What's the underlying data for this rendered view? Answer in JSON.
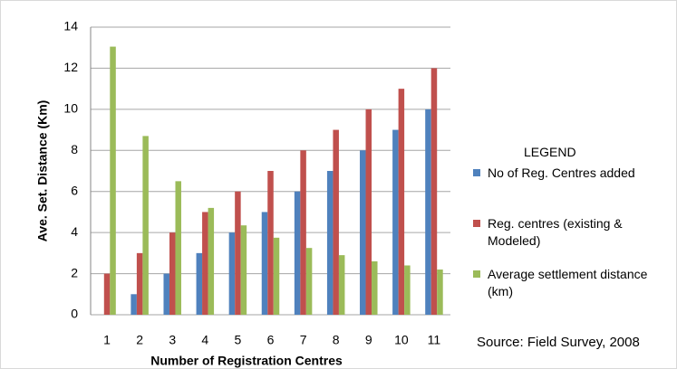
{
  "chart_data": {
    "type": "bar",
    "y_label": "Ave. Set. Distance (Km)",
    "x_label": "Number of Registration Centres",
    "legend_title": "LEGEND",
    "annotation": "Source: Field Survey, 2008",
    "categories": [
      "1",
      "2",
      "3",
      "4",
      "5",
      "6",
      "7",
      "8",
      "9",
      "10",
      "11"
    ],
    "series": [
      {
        "name": "No of Reg. Centres added",
        "color": "#4f81bd",
        "values": [
          0,
          1,
          2,
          3,
          4,
          5,
          6,
          7,
          8,
          9,
          10
        ]
      },
      {
        "name": "Reg. centres (existing & Modeled)",
        "color": "#c0504d",
        "values": [
          2,
          3,
          4,
          5,
          6,
          7,
          8,
          9,
          10,
          11,
          12
        ]
      },
      {
        "name": "Average settlement distance (km)",
        "color": "#9bbb59",
        "values": [
          13.05,
          8.7,
          6.5,
          5.2,
          4.35,
          3.75,
          3.25,
          2.9,
          2.6,
          2.4,
          2.2
        ]
      }
    ],
    "ylim": [
      0,
      14
    ],
    "yticks": [
      0,
      2,
      4,
      6,
      8,
      10,
      12,
      14
    ],
    "grid": true,
    "legend": "right"
  }
}
